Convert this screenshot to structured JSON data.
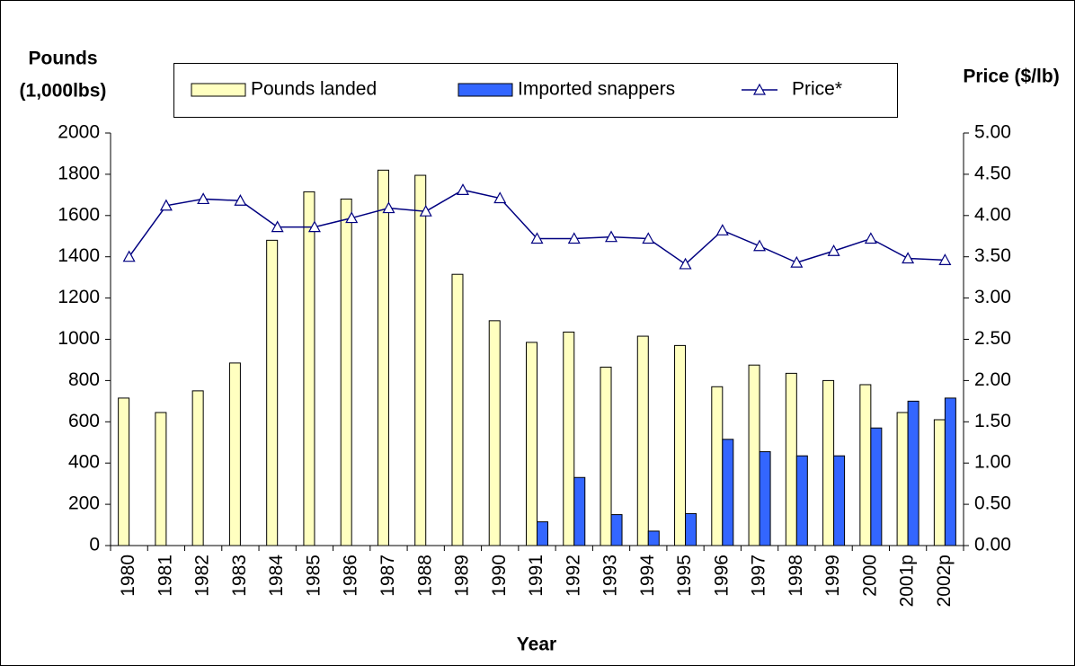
{
  "chart_data": {
    "type": "bar",
    "y_label": [
      "Pounds",
      "(1,000lbs)"
    ],
    "y2_label": "Price ($/lb)",
    "x_label": "Year",
    "legend": "top",
    "categories": [
      "1980",
      "1981",
      "1982",
      "1983",
      "1984",
      "1985",
      "1986",
      "1987",
      "1988",
      "1989",
      "1990",
      "1991",
      "1992",
      "1993",
      "1994",
      "1995",
      "1996",
      "1997",
      "1998",
      "1999",
      "2000",
      "2001p",
      "2002p"
    ],
    "series": [
      {
        "name": "Pounds landed",
        "type": "bar",
        "color": "#ffffc0",
        "values": [
          715,
          645,
          750,
          885,
          1480,
          1715,
          1680,
          1820,
          1795,
          1315,
          1090,
          985,
          1035,
          865,
          1015,
          970,
          770,
          875,
          835,
          800,
          780,
          645,
          610
        ]
      },
      {
        "name": "Imported snappers",
        "type": "bar",
        "color": "#3366ff",
        "values": [
          null,
          null,
          null,
          null,
          null,
          null,
          null,
          null,
          null,
          null,
          null,
          115,
          330,
          150,
          70,
          155,
          515,
          455,
          435,
          435,
          570,
          700,
          715
        ]
      },
      {
        "name": "Price*",
        "type": "line",
        "axis": "y2",
        "color": "#000080",
        "values": [
          3.5,
          4.12,
          4.2,
          4.18,
          3.86,
          3.86,
          3.97,
          4.09,
          4.05,
          4.31,
          4.21,
          3.72,
          3.72,
          3.74,
          3.72,
          3.41,
          3.82,
          3.63,
          3.43,
          3.57,
          3.72,
          3.48,
          3.46
        ]
      }
    ],
    "ylim": [
      0,
      2000
    ],
    "yticks": [
      0,
      200,
      400,
      600,
      800,
      1000,
      1200,
      1400,
      1600,
      1800,
      2000
    ],
    "y2lim": [
      0,
      5
    ],
    "y2ticks": [
      {
        "value": 0,
        "label": "0.00"
      },
      {
        "value": 0.5,
        "label": "0.50"
      },
      {
        "value": 1,
        "label": "1.00"
      },
      {
        "value": 1.5,
        "label": "1.50"
      },
      {
        "value": 2,
        "label": "2.00"
      },
      {
        "value": 2.5,
        "label": "2.50"
      },
      {
        "value": 3,
        "label": "3.00"
      },
      {
        "value": 3.5,
        "label": "3.50"
      },
      {
        "value": 4,
        "label": "4.00"
      },
      {
        "value": 4.5,
        "label": "4.50"
      },
      {
        "value": 5,
        "label": "5.00"
      }
    ]
  }
}
